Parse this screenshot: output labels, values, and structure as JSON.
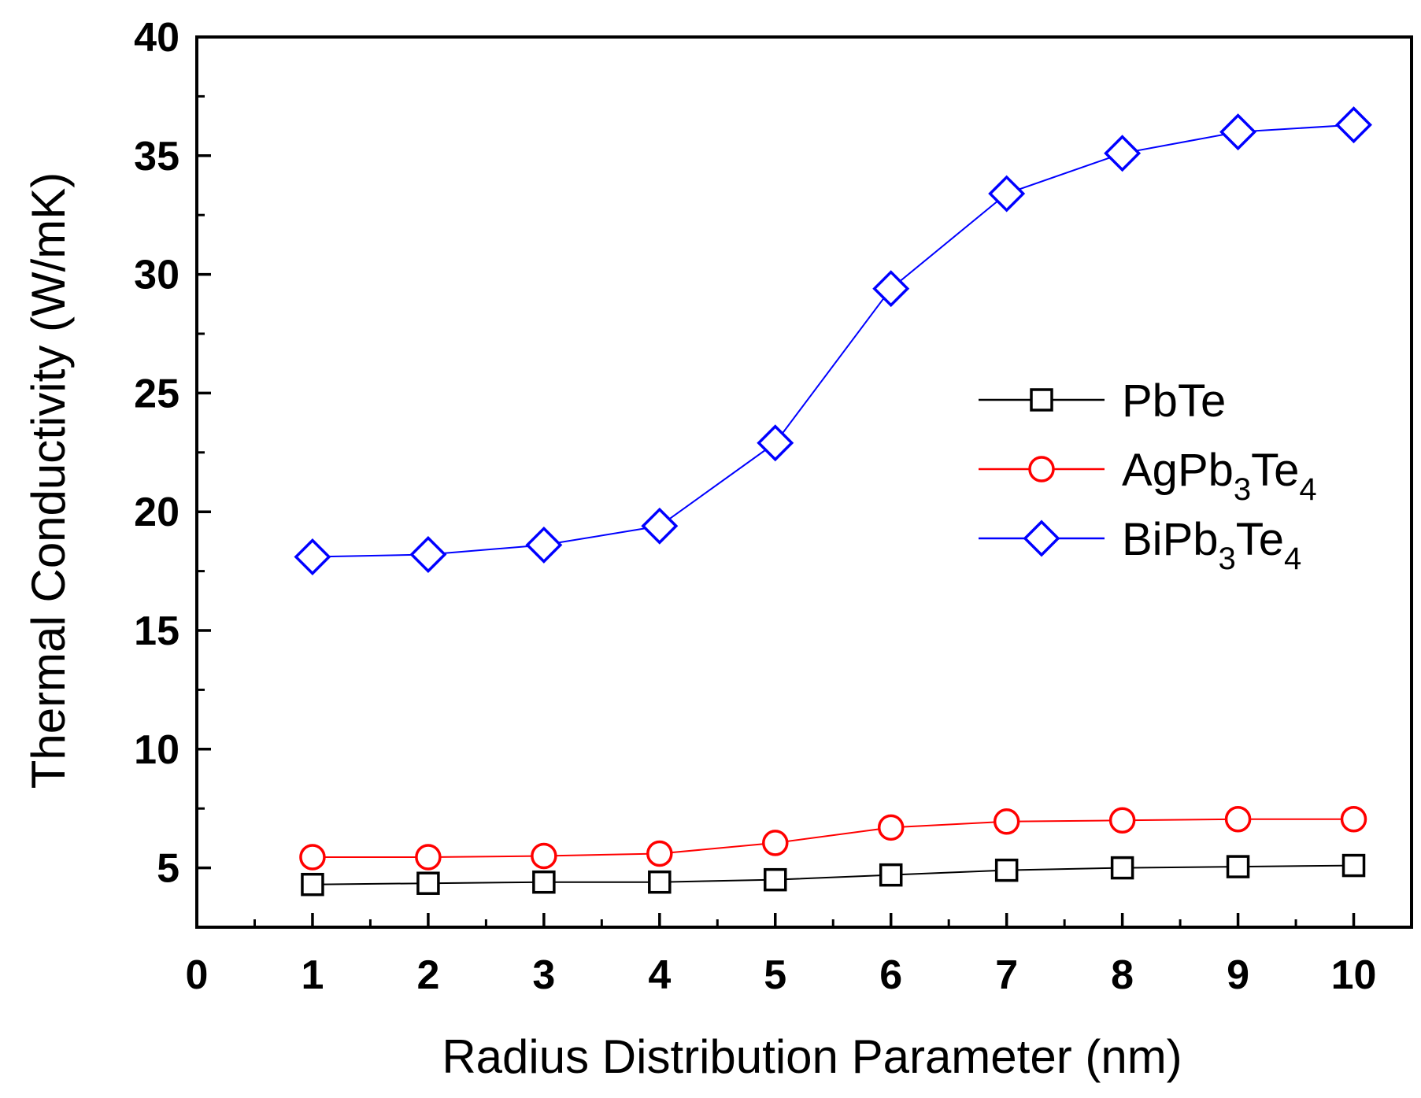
{
  "chart_data": {
    "type": "line",
    "title": "",
    "xlabel": "Radius Distribution Parameter (nm)",
    "ylabel": "Thermal Conductivity (W/mK)",
    "xlim": [
      0,
      10.5
    ],
    "ylim": [
      2.5,
      40
    ],
    "xticks": [
      "0",
      "1",
      "2",
      "3",
      "4",
      "5",
      "6",
      "7",
      "8",
      "9",
      "10"
    ],
    "yticks": [
      "5",
      "10",
      "15",
      "20",
      "25",
      "30",
      "35",
      "40"
    ],
    "legend_position": "center-right",
    "x": [
      1,
      2,
      3,
      4,
      5,
      6,
      7,
      8,
      9,
      10
    ],
    "series": [
      {
        "name": "PbTe",
        "legend_parts": [
          {
            "text": "PbTe",
            "sub": false
          }
        ],
        "marker": "square",
        "color": "#000000",
        "values": [
          4.3,
          4.35,
          4.4,
          4.4,
          4.5,
          4.7,
          4.9,
          5.0,
          5.05,
          5.1
        ]
      },
      {
        "name": "AgPb3Te4",
        "legend_parts": [
          {
            "text": "AgPb",
            "sub": false
          },
          {
            "text": "3",
            "sub": true
          },
          {
            "text": "Te",
            "sub": false
          },
          {
            "text": "4",
            "sub": true
          }
        ],
        "marker": "circle",
        "color": "#ff0000",
        "values": [
          5.45,
          5.45,
          5.5,
          5.6,
          6.05,
          6.7,
          6.95,
          7.0,
          7.05,
          7.05
        ]
      },
      {
        "name": "BiPb3Te4",
        "legend_parts": [
          {
            "text": "BiPb",
            "sub": false
          },
          {
            "text": "3",
            "sub": true
          },
          {
            "text": "Te",
            "sub": false
          },
          {
            "text": "4",
            "sub": true
          }
        ],
        "marker": "diamond",
        "color": "#0000ff",
        "values": [
          18.1,
          18.2,
          18.6,
          19.4,
          22.9,
          29.4,
          33.4,
          35.1,
          36.0,
          36.3
        ]
      }
    ]
  }
}
